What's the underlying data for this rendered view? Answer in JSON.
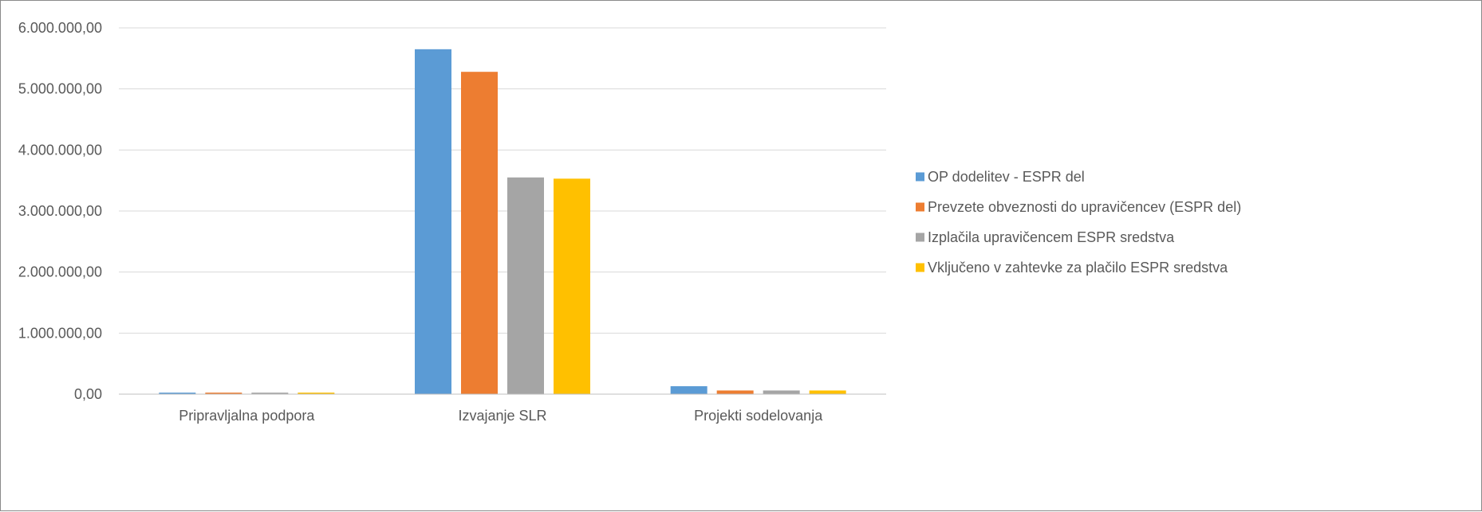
{
  "chart_data": {
    "type": "bar",
    "title": "",
    "xlabel": "",
    "ylabel": "",
    "categories": [
      "Pripravljalna podpora",
      "Izvajanje SLR",
      "Projekti sodelovanja"
    ],
    "series": [
      {
        "name": "OP dodelitev - ESPR del",
        "color": "#5b9bd5",
        "values": [
          25000,
          5650000,
          130000
        ]
      },
      {
        "name": "Prevzete obveznosti do upravičencev (ESPR del)",
        "color": "#ed7d31",
        "values": [
          25000,
          5280000,
          60000
        ]
      },
      {
        "name": "Izplačila upravičencem ESPR sredstva",
        "color": "#a5a5a5",
        "values": [
          25000,
          3550000,
          60000
        ]
      },
      {
        "name": "Vključeno v zahtevke za plačilo ESPR sredstva",
        "color": "#ffc000",
        "values": [
          25000,
          3530000,
          60000
        ]
      }
    ],
    "ylim": [
      0,
      6000000
    ],
    "yticks": [
      0,
      1000000,
      2000000,
      3000000,
      4000000,
      5000000,
      6000000
    ],
    "ytick_labels": [
      "0,00",
      "1.000.000,00",
      "2.000.000,00",
      "3.000.000,00",
      "4.000.000,00",
      "5.000.000,00",
      "6.000.000,00"
    ],
    "grid": true,
    "legend_position": "right"
  },
  "colors": {
    "gridline": "#d9d9d9",
    "axis_line": "#bfbfbf",
    "text": "#595959"
  }
}
